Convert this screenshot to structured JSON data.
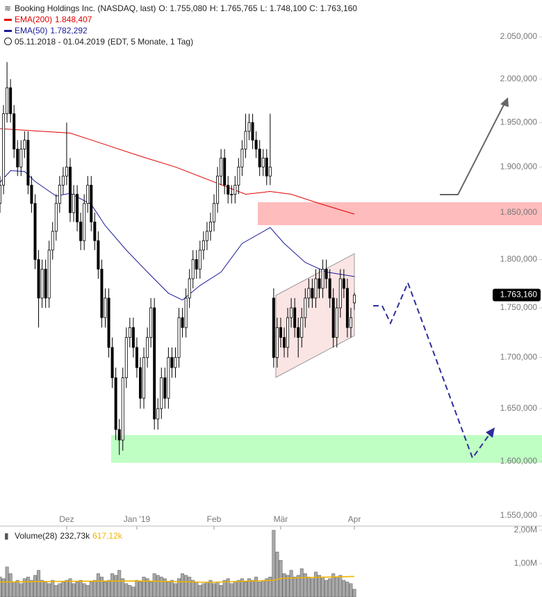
{
  "chart_data": {
    "type": "candlestick",
    "title": "Booking Holdings Inc. (NASDAQ, last)",
    "ohlc_labels": [
      "O: 1.755,080",
      "H: 1.765,765",
      "L: 1.748,100",
      "C: 1.763,160"
    ],
    "period": "05.11.2018 - 01.04.2019",
    "period_note": "(EDT, 5 Monate, 1 Tag)",
    "log_scale": true,
    "xlim": [
      0,
      101
    ],
    "xticks": [
      {
        "value": 19,
        "label": "Dez"
      },
      {
        "value": 39,
        "label": "Jan '19"
      },
      {
        "value": 61,
        "label": "Feb"
      },
      {
        "value": 80,
        "label": "Mär"
      },
      {
        "value": 101,
        "label": "Apr"
      }
    ],
    "ylim": [
      1540.6,
      2094.6
    ],
    "yticks": [
      {
        "value": 1550,
        "label": "1.550,000"
      },
      {
        "value": 1600,
        "label": "1.600,000"
      },
      {
        "value": 1650,
        "label": "1.650,000"
      },
      {
        "value": 1700,
        "label": "1.700,000"
      },
      {
        "value": 1750,
        "label": "1.750,000"
      },
      {
        "value": 1800,
        "label": "1.800,000"
      },
      {
        "value": 1850,
        "label": "1.850,000"
      },
      {
        "value": 1900,
        "label": "1.900,000"
      },
      {
        "value": 1950,
        "label": "1.950,000"
      },
      {
        "value": 2000,
        "label": "2.000,000"
      },
      {
        "value": 2050,
        "label": "2.050,000"
      }
    ],
    "up_color": "#ffffff",
    "down_color": "#000000",
    "open": [
      1860,
      1880,
      1960,
      1990,
      1960,
      1920,
      1900,
      1920,
      1930,
      1880,
      1860,
      1800,
      1760,
      1790,
      1760,
      1810,
      1830,
      1860,
      1880,
      1890,
      1900,
      1850,
      1870,
      1840,
      1820,
      1860,
      1880,
      1840,
      1820,
      1790,
      1740,
      1760,
      1710,
      1680,
      1630,
      1620,
      1680,
      1720,
      1730,
      1710,
      1690,
      1660,
      1700,
      1720,
      1750,
      1640,
      1650,
      1680,
      1660,
      1700,
      1690,
      1700,
      1740,
      1730,
      1760,
      1780,
      1800,
      1790,
      1810,
      1820,
      1830,
      1840,
      1860,
      1890,
      1910,
      1880,
      1870,
      1870,
      1880,
      1900,
      1920,
      1940,
      1950,
      1930,
      1920,
      1900,
      1910,
      1890,
      1760,
      1700,
      1730,
      1720,
      1710,
      1740,
      1750,
      1730,
      1720,
      1740,
      1760,
      1770,
      1760,
      1780,
      1770,
      1790,
      1780,
      1760,
      1720,
      1750,
      1780,
      1770,
      1730,
      1755.08
    ],
    "high": [
      1890,
      1970,
      2020,
      2000,
      1970,
      1930,
      1930,
      1940,
      1940,
      1890,
      1870,
      1810,
      1800,
      1800,
      1820,
      1840,
      1870,
      1890,
      1900,
      1950,
      1910,
      1880,
      1880,
      1850,
      1870,
      1890,
      1890,
      1850,
      1830,
      1800,
      1770,
      1770,
      1720,
      1690,
      1640,
      1690,
      1730,
      1740,
      1740,
      1720,
      1700,
      1710,
      1730,
      1760,
      1760,
      1660,
      1690,
      1690,
      1710,
      1710,
      1710,
      1750,
      1750,
      1770,
      1790,
      1810,
      1810,
      1820,
      1830,
      1840,
      1850,
      1870,
      1900,
      1920,
      1920,
      1890,
      1880,
      1890,
      1910,
      1930,
      1960,
      1960,
      1960,
      1940,
      1930,
      1920,
      1920,
      1960,
      1770,
      1740,
      1740,
      1730,
      1750,
      1760,
      1760,
      1740,
      1750,
      1770,
      1780,
      1780,
      1790,
      1790,
      1800,
      1800,
      1790,
      1770,
      1760,
      1790,
      1790,
      1780,
      1750,
      1765.765
    ],
    "low": [
      1850,
      1870,
      1950,
      1950,
      1910,
      1890,
      1890,
      1910,
      1870,
      1850,
      1790,
      1730,
      1750,
      1750,
      1750,
      1800,
      1820,
      1850,
      1870,
      1880,
      1840,
      1840,
      1830,
      1810,
      1810,
      1850,
      1830,
      1810,
      1780,
      1730,
      1730,
      1700,
      1670,
      1620,
      1606,
      1610,
      1670,
      1710,
      1700,
      1680,
      1650,
      1650,
      1690,
      1710,
      1630,
      1630,
      1640,
      1650,
      1650,
      1680,
      1680,
      1690,
      1720,
      1720,
      1750,
      1770,
      1780,
      1780,
      1800,
      1810,
      1820,
      1830,
      1850,
      1880,
      1870,
      1860,
      1860,
      1860,
      1870,
      1890,
      1910,
      1930,
      1920,
      1910,
      1890,
      1890,
      1880,
      1880,
      1690,
      1690,
      1710,
      1700,
      1700,
      1730,
      1720,
      1700,
      1710,
      1730,
      1750,
      1750,
      1750,
      1760,
      1760,
      1770,
      1750,
      1710,
      1710,
      1740,
      1760,
      1720,
      1720,
      1748.1
    ],
    "close": [
      1880,
      1960,
      1990,
      1960,
      1920,
      1900,
      1920,
      1930,
      1880,
      1860,
      1800,
      1760,
      1790,
      1760,
      1810,
      1830,
      1860,
      1880,
      1890,
      1900,
      1850,
      1870,
      1840,
      1820,
      1860,
      1880,
      1840,
      1820,
      1790,
      1740,
      1760,
      1710,
      1680,
      1630,
      1620,
      1680,
      1720,
      1730,
      1710,
      1690,
      1660,
      1700,
      1720,
      1750,
      1640,
      1650,
      1680,
      1660,
      1700,
      1690,
      1700,
      1740,
      1730,
      1760,
      1780,
      1800,
      1790,
      1810,
      1820,
      1830,
      1840,
      1860,
      1890,
      1910,
      1880,
      1870,
      1870,
      1880,
      1900,
      1920,
      1940,
      1950,
      1930,
      1920,
      1900,
      1910,
      1890,
      1900,
      1700,
      1730,
      1720,
      1710,
      1740,
      1750,
      1730,
      1720,
      1740,
      1760,
      1770,
      1760,
      1780,
      1770,
      1790,
      1780,
      1760,
      1720,
      1750,
      1780,
      1770,
      1730,
      1740,
      1763.16
    ],
    "last_price": {
      "value": 1763.16,
      "label": "1.763,160"
    },
    "series": [
      {
        "name": "EMA(200)",
        "value_label": "1.848,407",
        "color": "#e00000",
        "x": [
          0,
          20,
          30,
          40,
          50,
          60,
          70,
          77,
          83,
          91,
          101
        ],
        "values": [
          1943,
          1938,
          1925,
          1912,
          1900,
          1885,
          1870,
          1873,
          1870,
          1860,
          1848.407
        ]
      },
      {
        "name": "EMA(50)",
        "value_label": "1.782,292",
        "color": "#1a1a9a",
        "x": [
          0,
          3,
          7,
          10,
          16,
          20,
          26,
          30,
          36,
          42,
          48,
          52,
          57,
          63,
          69,
          77,
          81,
          87,
          93,
          101
        ],
        "values": [
          1883,
          1896,
          1895,
          1884,
          1868,
          1871,
          1859,
          1836,
          1810,
          1787,
          1765,
          1758,
          1773,
          1787,
          1817,
          1834,
          1817,
          1797,
          1787,
          1782.292
        ]
      }
    ],
    "volume": {
      "name": "Volume(28)",
      "last_label": "232,73k",
      "average_label": "617,12k",
      "color": "#a8a8a8",
      "ylim": [
        0,
        2125000
      ],
      "yticks": [
        {
          "value": 1000000,
          "label": "1,00M"
        },
        {
          "value": 2000000,
          "label": "2,00M"
        }
      ],
      "values": [
        600000,
        550000,
        900000,
        700000,
        450000,
        500000,
        400000,
        550000,
        600000,
        500000,
        650000,
        800000,
        500000,
        450000,
        400000,
        500000,
        350000,
        400000,
        450000,
        500000,
        550000,
        400000,
        450000,
        500000,
        400000,
        350000,
        450000,
        500000,
        700000,
        600000,
        450000,
        500000,
        700000,
        650000,
        800000,
        550000,
        400000,
        350000,
        300000,
        500000,
        450000,
        600000,
        550000,
        450000,
        700000,
        650000,
        600000,
        550000,
        450000,
        500000,
        400000,
        550000,
        700000,
        650000,
        600000,
        500000,
        450000,
        350000,
        400000,
        450000,
        500000,
        400000,
        450000,
        350000,
        500000,
        550000,
        400000,
        450000,
        500000,
        550000,
        450000,
        550000,
        500000,
        600000,
        450000,
        500000,
        550000,
        600000,
        2000000,
        1350000,
        1100000,
        700000,
        650000,
        800000,
        600000,
        650000,
        850000,
        700000,
        600000,
        550000,
        750000,
        650000,
        600000,
        500000,
        550000,
        700000,
        600000,
        650000,
        500000,
        450000,
        400000,
        232730
      ],
      "average": {
        "color": "#f0b400",
        "x": [
          0,
          20,
          40,
          60,
          78,
          80,
          90,
          101
        ],
        "values": [
          450000,
          470000,
          480000,
          440000,
          500000,
          560000,
          590000,
          617120
        ]
      }
    }
  }
}
